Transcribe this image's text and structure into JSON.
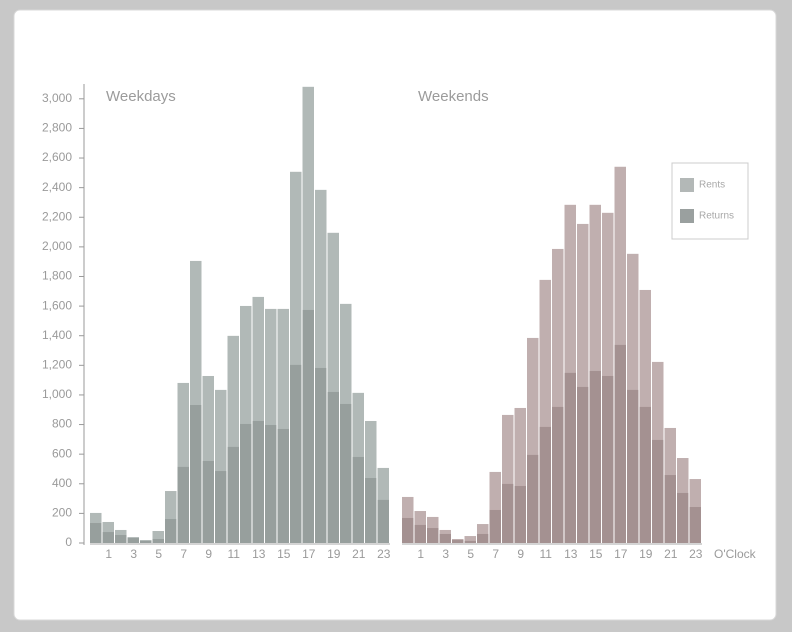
{
  "chart_data": {
    "type": "bar",
    "x_label": "O'Clock",
    "ylim": [
      0,
      3100
    ],
    "yticks": [
      0,
      200,
      400,
      600,
      800,
      {
        "value": 1000,
        "label": "1,000"
      },
      {
        "value": 1200,
        "label": "1,200"
      },
      {
        "value": 1400,
        "label": "1,400"
      },
      {
        "value": 1600,
        "label": "1,600"
      },
      {
        "value": 1800,
        "label": "1,800"
      },
      {
        "value": 2000,
        "label": "2,000"
      },
      {
        "value": 2200,
        "label": "2,200"
      },
      {
        "value": 2400,
        "label": "2,400"
      },
      {
        "value": 2600,
        "label": "2,600"
      },
      {
        "value": 2800,
        "label": "2,800"
      },
      {
        "value": 3000,
        "label": "3,000"
      }
    ],
    "legend_position": "upper right",
    "legend": [
      {
        "name": "Rents",
        "color": "#b3b8b7"
      },
      {
        "name": "Returns",
        "color": "#9aa09f"
      }
    ],
    "panels": [
      {
        "title": "Weekdays",
        "categories": [
          null,
          1,
          null,
          3,
          null,
          5,
          null,
          7,
          null,
          9,
          null,
          11,
          null,
          13,
          null,
          15,
          null,
          17,
          null,
          19,
          null,
          21,
          null,
          23
        ],
        "series": [
          {
            "name": "Rents",
            "color": "#b1b9b7",
            "values": [
              203,
              142,
              88,
              40,
              20,
              81,
              351,
              1081,
              1905,
              1128,
              1034,
              1399,
              1601,
              1662,
              1581,
              1581,
              2507,
              3081,
              2385,
              2095,
              1615,
              1014,
              824,
              507
            ]
          },
          {
            "name": "Returns",
            "color": "#979f9d",
            "values": [
              135,
              74,
              54,
              34,
              14,
              27,
              162,
              514,
              932,
              554,
              486,
              649,
              804,
              824,
              797,
              770,
              1203,
              1574,
              1182,
              1020,
              939,
              581,
              439,
              291
            ]
          }
        ]
      },
      {
        "title": "Weekends",
        "categories": [
          null,
          1,
          null,
          3,
          null,
          5,
          null,
          7,
          null,
          9,
          null,
          11,
          null,
          13,
          null,
          15,
          null,
          17,
          null,
          19,
          null,
          21,
          null,
          23
        ],
        "series": [
          {
            "name": "Rents",
            "color": "#c0afaf",
            "values": [
              311,
              216,
              176,
              88,
              27,
              47,
              128,
              480,
              865,
              912,
              1385,
              1777,
              1986,
              2284,
              2155,
              2284,
              2230,
              2541,
              1953,
              1709,
              1223,
              777,
              574,
              432
            ]
          },
          {
            "name": "Returns",
            "color": "#a49191",
            "values": [
              169,
              122,
              101,
              61,
              20,
              14,
              61,
              223,
              399,
              385,
              595,
              784,
              919,
              1149,
              1054,
              1162,
              1128,
              1338,
              1034,
              919,
              696,
              459,
              338,
              243
            ]
          }
        ]
      }
    ]
  }
}
